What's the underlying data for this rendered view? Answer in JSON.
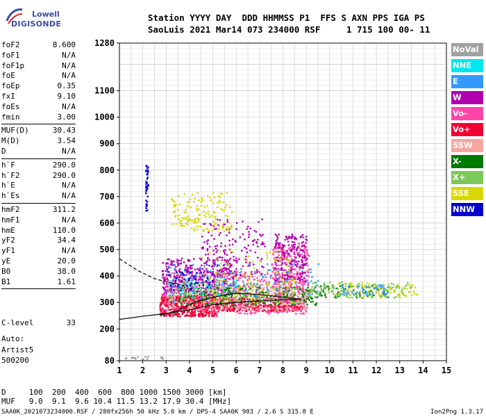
{
  "logo": {
    "line1": "Lowell",
    "line2": "DIGISONDE"
  },
  "header": {
    "line1": "Station YYYY DAY  DDD HHMMSS P1  FFS S AXN PPS IGA PS",
    "line2": "SaoLuis 2021 Mar14 073 234000 RSF     1 715 100 00- 11"
  },
  "params": {
    "group1": [
      {
        "k": "foF2",
        "v": "8.600"
      },
      {
        "k": "foF1",
        "v": "N/A"
      },
      {
        "k": "foF1p",
        "v": "N/A"
      },
      {
        "k": "foE",
        "v": "N/A"
      },
      {
        "k": "foEp",
        "v": "0.35"
      },
      {
        "k": "fxI",
        "v": "9.10"
      },
      {
        "k": "foEs",
        "v": "N/A"
      },
      {
        "k": "fmin",
        "v": "3.00"
      }
    ],
    "group2": [
      {
        "k": "MUF(D)",
        "v": "30.43"
      },
      {
        "k": "M(D)",
        "v": "3.54"
      },
      {
        "k": "D",
        "v": "N/A"
      }
    ],
    "group3": [
      {
        "k": "h`F",
        "v": "290.0"
      },
      {
        "k": "h`F2",
        "v": "290.0"
      },
      {
        "k": "h`E",
        "v": "N/A"
      },
      {
        "k": "h`Es",
        "v": "N/A"
      }
    ],
    "group4": [
      {
        "k": "hmF2",
        "v": "311.2"
      },
      {
        "k": "hmF1",
        "v": "N/A"
      },
      {
        "k": "hmE",
        "v": "110.0"
      },
      {
        "k": "yF2",
        "v": "34.4"
      },
      {
        "k": "yF1",
        "v": "N/A"
      },
      {
        "k": "yE",
        "v": "20.0"
      },
      {
        "k": "B0",
        "v": "38.0"
      },
      {
        "k": "B1",
        "v": "1.61"
      }
    ]
  },
  "clevel": {
    "k": "C-level",
    "v": "33"
  },
  "auto": {
    "l1": "Auto:",
    "l2": "Artist5",
    "l3": "500200"
  },
  "legend": [
    {
      "label": "NoVal",
      "color": "#a0a0a0"
    },
    {
      "label": "NNE",
      "color": "#00e5ee"
    },
    {
      "label": "E",
      "color": "#3399ff"
    },
    {
      "label": "W",
      "color": "#b000b0"
    },
    {
      "label": "Vo-",
      "color": "#ff44aa"
    },
    {
      "label": "Vo+",
      "color": "#ee0033"
    },
    {
      "label": "SSW",
      "color": "#f4a6a0"
    },
    {
      "label": "X-",
      "color": "#007a00"
    },
    {
      "label": "X+",
      "color": "#7cc85a"
    },
    {
      "label": "SSE",
      "color": "#d8d800"
    },
    {
      "label": "NNW",
      "color": "#0000cc"
    }
  ],
  "bottom": {
    "dline": "D     100  200  400  600  800 1000 1500 3000 [km]",
    "mufline": "MUF   9.0  9.1  9.6 10.4 11.5 13.2 17.9 30.4 [MHz]"
  },
  "footer": {
    "left": "SAA0K_2021073234000.RSF / 280fx256h 50 kHz 5.0 km / DPS-4 SAA0K 903 / 2.6 S 315.8 E",
    "right": "Ion2Png 1.3.17"
  },
  "chart_data": {
    "type": "scatter",
    "title": "",
    "xlabel": "",
    "ylabel": "",
    "xlim": [
      1,
      15
    ],
    "ylim": [
      80,
      1280
    ],
    "x_ticks": [
      1,
      2,
      3,
      4,
      5,
      6,
      7,
      8,
      9,
      10,
      11,
      12,
      13,
      14,
      15
    ],
    "y_ticks": [
      80,
      200,
      300,
      400,
      500,
      600,
      700,
      800,
      900,
      1000,
      1100,
      1280
    ],
    "grid": true,
    "series": [
      {
        "name": "Vo+",
        "color": "#ee0033",
        "regions": [
          {
            "x": [
              2.7,
              5.2
            ],
            "y": [
              250,
              330
            ],
            "n": 500
          },
          {
            "x": [
              5.2,
              8.8
            ],
            "y": [
              270,
              320
            ],
            "n": 350
          }
        ]
      },
      {
        "name": "Vo-",
        "color": "#ff44aa",
        "regions": [
          {
            "x": [
              2.8,
              9.0
            ],
            "y": [
              260,
              420
            ],
            "n": 600
          },
          {
            "x": [
              7.5,
              9.1
            ],
            "y": [
              300,
              520
            ],
            "n": 300
          }
        ]
      },
      {
        "name": "W",
        "color": "#b000b0",
        "regions": [
          {
            "x": [
              2.8,
              6.0
            ],
            "y": [
              330,
              470
            ],
            "n": 350
          },
          {
            "x": [
              4.5,
              7.2
            ],
            "y": [
              400,
              620
            ],
            "n": 160
          },
          {
            "x": [
              7.6,
              9.0
            ],
            "y": [
              380,
              560
            ],
            "n": 200
          }
        ]
      },
      {
        "name": "SSW",
        "color": "#f4a6a0",
        "regions": [
          {
            "x": [
              3.0,
              9.0
            ],
            "y": [
              270,
              360
            ],
            "n": 250
          }
        ]
      },
      {
        "name": "X-",
        "color": "#007a00",
        "regions": [
          {
            "x": [
              3.5,
              9.5
            ],
            "y": [
              290,
              360
            ],
            "n": 220
          },
          {
            "x": [
              9.5,
              12.5
            ],
            "y": [
              320,
              370
            ],
            "n": 60
          }
        ]
      },
      {
        "name": "X+",
        "color": "#7cc85a",
        "regions": [
          {
            "x": [
              3.0,
              9.0
            ],
            "y": [
              300,
              380
            ],
            "n": 220
          },
          {
            "x": [
              9.0,
              13.5
            ],
            "y": [
              320,
              380
            ],
            "n": 150
          }
        ]
      },
      {
        "name": "SSE",
        "color": "#d8d800",
        "regions": [
          {
            "x": [
              3.2,
              5.8
            ],
            "y": [
              570,
              720
            ],
            "n": 150
          },
          {
            "x": [
              4.5,
              8.5
            ],
            "y": [
              300,
              500
            ],
            "n": 120
          },
          {
            "x": [
              10.0,
              13.8
            ],
            "y": [
              320,
              380
            ],
            "n": 80
          }
        ]
      },
      {
        "name": "E",
        "color": "#3399ff",
        "regions": [
          {
            "x": [
              3.0,
              9.5
            ],
            "y": [
              300,
              450
            ],
            "n": 120
          },
          {
            "x": [
              10.0,
              12.5
            ],
            "y": [
              330,
              370
            ],
            "n": 50
          }
        ]
      },
      {
        "name": "NNE",
        "color": "#00e5ee",
        "regions": [
          {
            "x": [
              3.0,
              6.0
            ],
            "y": [
              330,
              400
            ],
            "n": 60
          }
        ]
      },
      {
        "name": "NNW",
        "color": "#0000cc",
        "regions": [
          {
            "x": [
              2.1,
              2.2
            ],
            "y": [
              640,
              820
            ],
            "n": 40
          },
          {
            "x": [
              3.0,
              5.0
            ],
            "y": [
              340,
              420
            ],
            "n": 50
          }
        ]
      },
      {
        "name": "NoVal",
        "color": "#a0a0a0",
        "regions": [
          {
            "x": [
              1.0,
              3.0
            ],
            "y": [
              82,
              98
            ],
            "n": 30
          }
        ]
      }
    ],
    "trace_lines": [
      {
        "style": "solid",
        "points": [
          [
            1.0,
            236
          ],
          [
            2.0,
            248
          ],
          [
            3.0,
            258
          ],
          [
            4.0,
            272
          ],
          [
            5.0,
            292
          ],
          [
            6.0,
            300
          ],
          [
            7.0,
            306
          ],
          [
            8.0,
            310
          ],
          [
            8.8,
            312
          ]
        ]
      },
      {
        "style": "solid",
        "points": [
          [
            2.8,
            252
          ],
          [
            3.5,
            270
          ],
          [
            4.2,
            300
          ],
          [
            5.0,
            320
          ],
          [
            6.0,
            335
          ],
          [
            7.0,
            330
          ],
          [
            8.0,
            320
          ],
          [
            8.8,
            312
          ]
        ]
      },
      {
        "style": "dashed",
        "points": [
          [
            1.0,
            465
          ],
          [
            1.8,
            420
          ],
          [
            2.5,
            390
          ],
          [
            3.0,
            378
          ],
          [
            3.5,
            370
          ]
        ]
      }
    ]
  }
}
